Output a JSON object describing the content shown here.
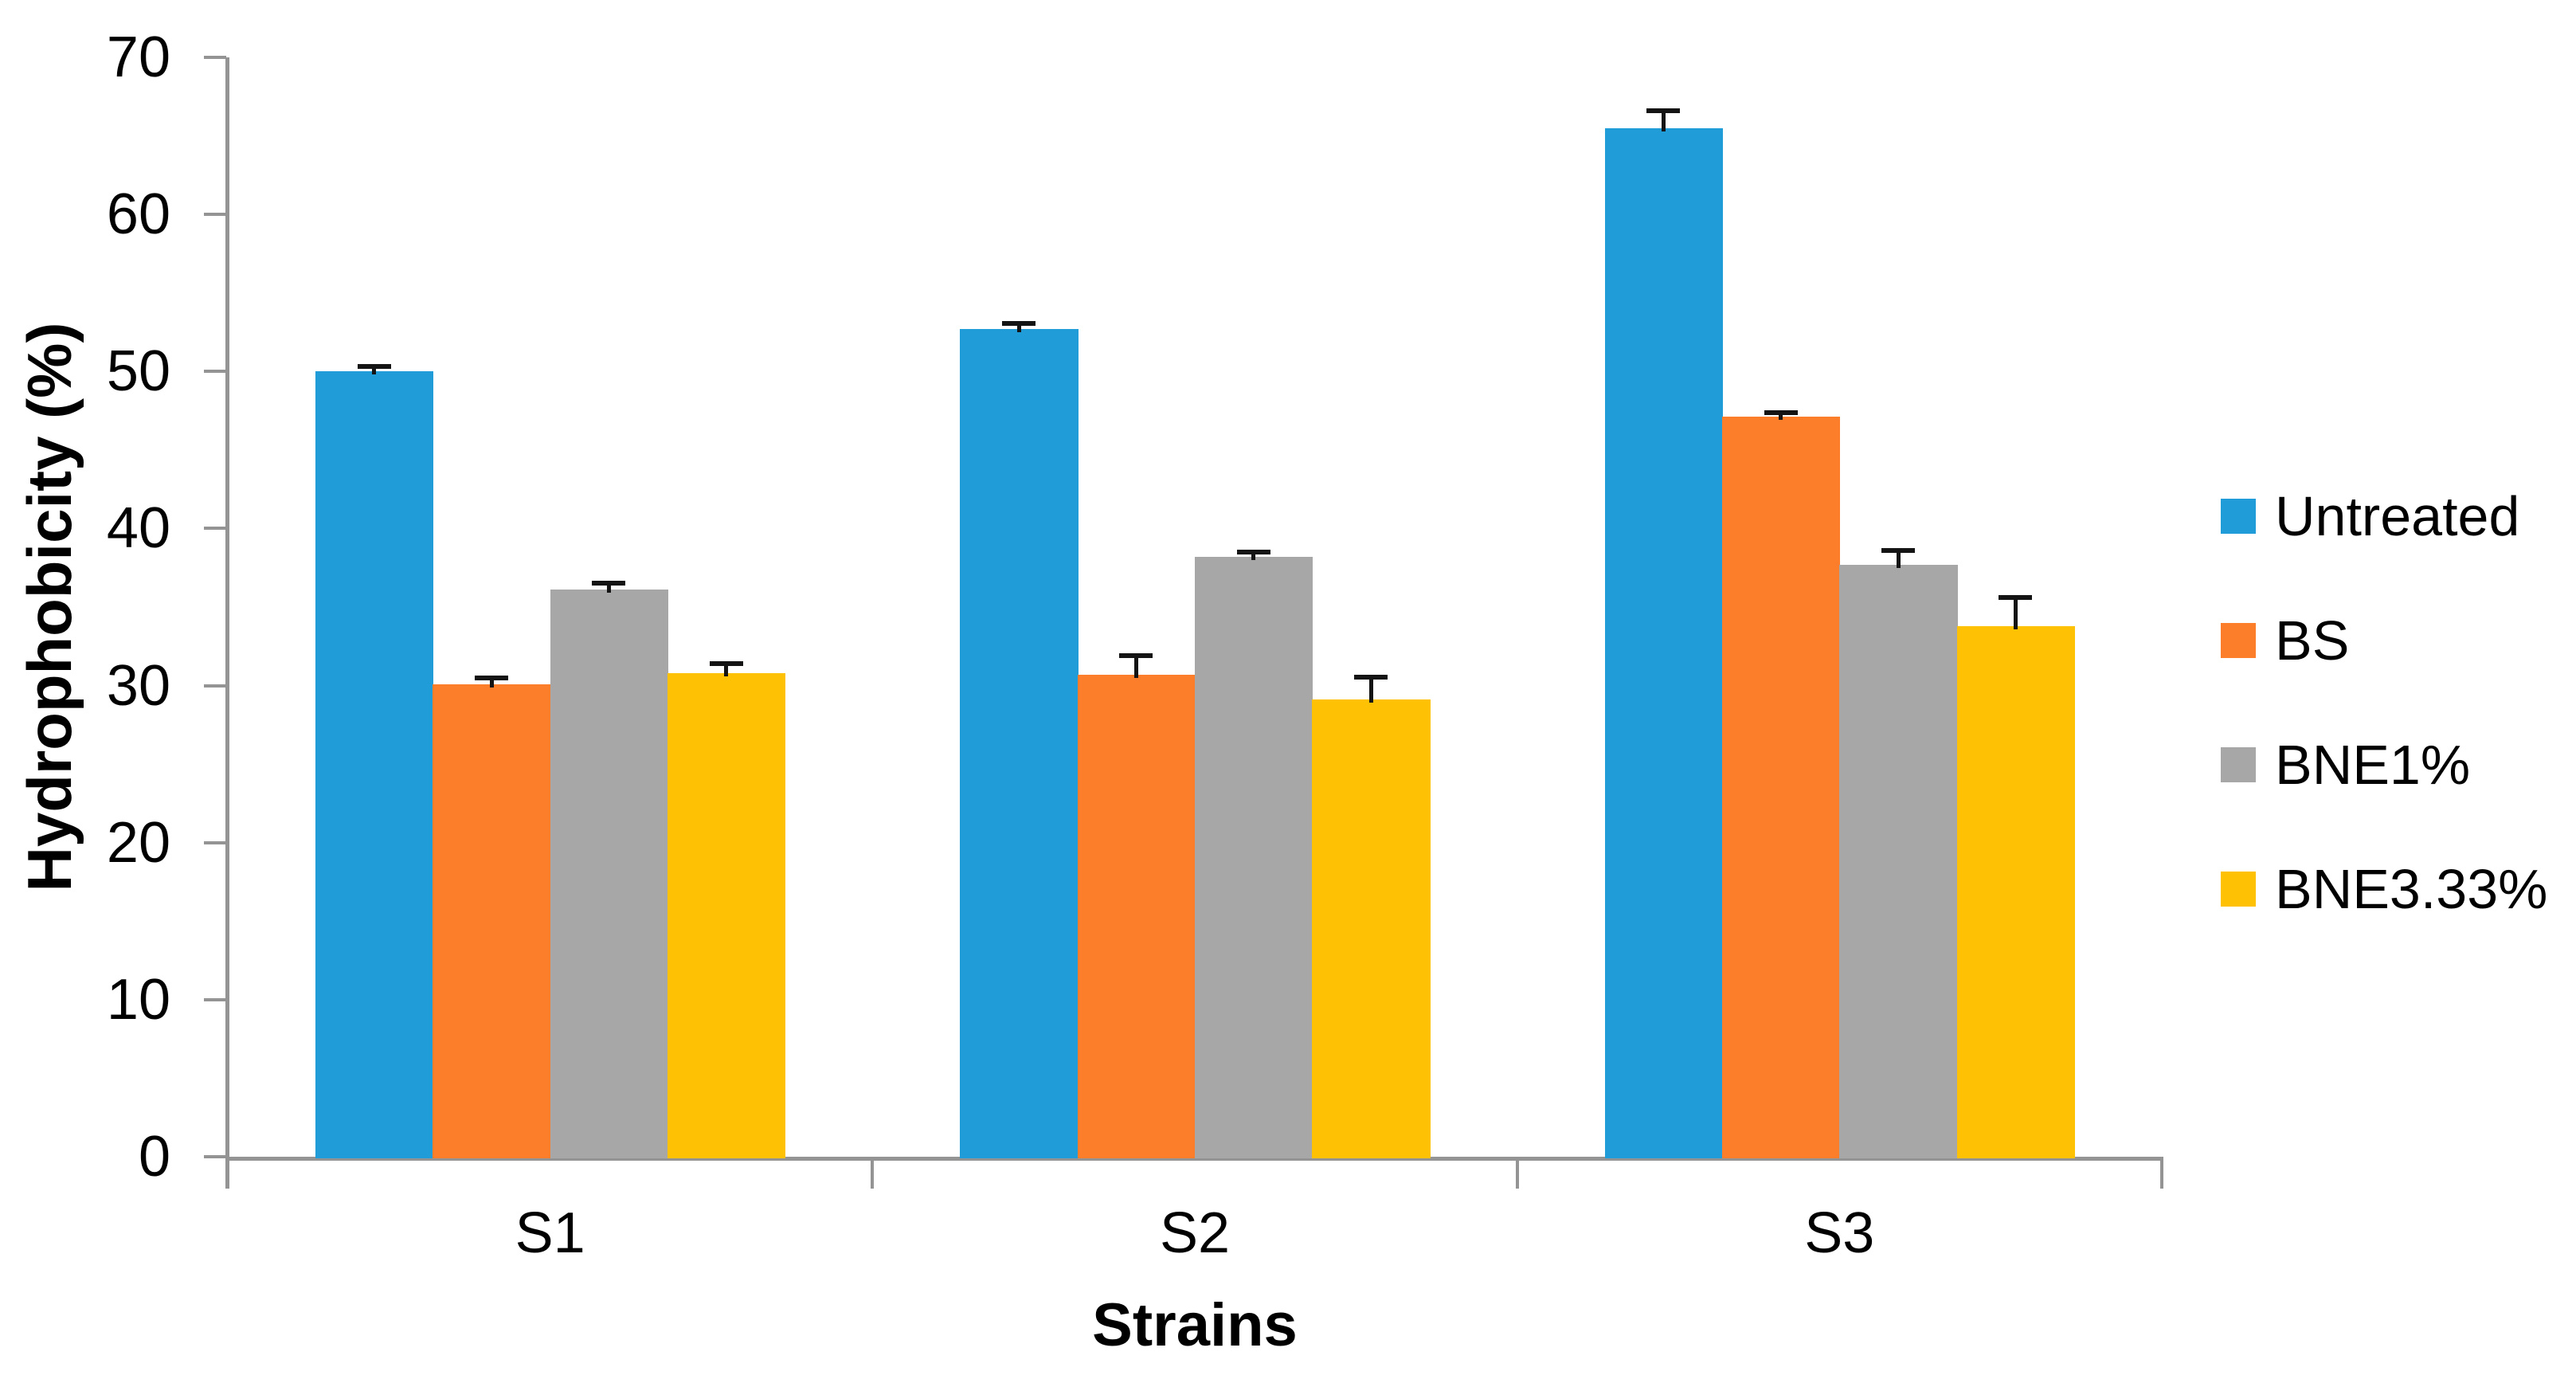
{
  "chart_data": {
    "type": "bar",
    "title": "",
    "xlabel": "Strains",
    "ylabel": "Hydrophobicity (%)",
    "categories": [
      "S1",
      "S2",
      "S3"
    ],
    "series": [
      {
        "name": "Untreated",
        "color": "#209CD8",
        "values": [
          50.0,
          52.7,
          65.5
        ],
        "errors": [
          0.3,
          0.35,
          1.1
        ]
      },
      {
        "name": "BS",
        "color": "#FC7D2A",
        "values": [
          30.1,
          30.7,
          47.1
        ],
        "errors": [
          0.4,
          1.2,
          0.3
        ]
      },
      {
        "name": "BNE1%",
        "color": "#A7A7A7",
        "values": [
          36.1,
          38.2,
          37.7
        ],
        "errors": [
          0.4,
          0.3,
          0.9
        ]
      },
      {
        "name": "BNE3.33%",
        "color": "#FFC103",
        "values": [
          30.8,
          29.1,
          33.8
        ],
        "errors": [
          0.6,
          1.45,
          1.8
        ]
      }
    ],
    "ylim": [
      0,
      70
    ],
    "yticks": [
      0,
      10,
      20,
      30,
      40,
      50,
      60,
      70
    ],
    "grid": false,
    "error_bars": true,
    "legend_position": "right",
    "axis_color": "#949494",
    "text_color": "#000000",
    "background_color": "#FFFFFF"
  }
}
